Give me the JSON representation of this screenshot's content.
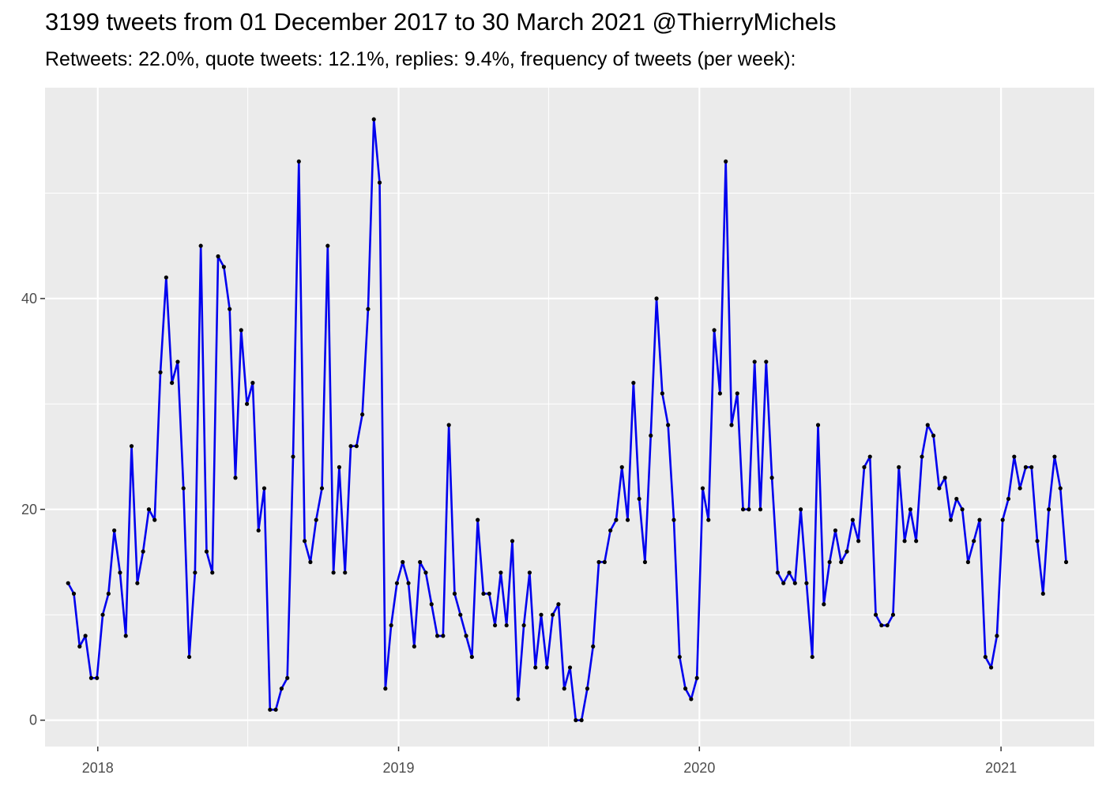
{
  "title": "3199 tweets from 01 December 2017 to 30 March 2021 @ThierryMichels",
  "subtitle": "Retweets: 22.0%, quote tweets: 12.1%, replies: 9.4%, frequency of tweets (per week):",
  "colors": {
    "panel": "#ebebeb",
    "grid": "#ffffff",
    "line": "#0000ee",
    "point": "#000000"
  },
  "chart_data": {
    "type": "line",
    "xlabel": "",
    "ylabel": "",
    "x_tick_labels": [
      "2018",
      "2019",
      "2020",
      "2021"
    ],
    "y_tick_labels": [
      "0",
      "20",
      "40"
    ],
    "ylim": [
      -2.5,
      60
    ],
    "xlim": [
      "2017-10-29",
      "2021-04-24"
    ],
    "grid": true,
    "x_start": "2017-11-26",
    "x_step_days": 7,
    "values": [
      13,
      12,
      7,
      8,
      4,
      4,
      10,
      12,
      18,
      14,
      8,
      26,
      13,
      16,
      20,
      19,
      33,
      42,
      32,
      34,
      22,
      6,
      14,
      45,
      16,
      14,
      44,
      43,
      39,
      23,
      37,
      30,
      32,
      18,
      22,
      1,
      1,
      3,
      4,
      25,
      53,
      17,
      15,
      19,
      22,
      45,
      14,
      24,
      14,
      26,
      26,
      29,
      39,
      57,
      51,
      3,
      9,
      13,
      15,
      13,
      7,
      15,
      14,
      11,
      8,
      8,
      28,
      12,
      10,
      8,
      6,
      19,
      12,
      12,
      9,
      14,
      9,
      17,
      2,
      9,
      14,
      5,
      10,
      5,
      10,
      11,
      3,
      5,
      0,
      0,
      3,
      7,
      15,
      15,
      18,
      19,
      24,
      19,
      32,
      21,
      15,
      27,
      40,
      31,
      28,
      19,
      6,
      3,
      2,
      4,
      22,
      19,
      37,
      31,
      53,
      28,
      31,
      20,
      20,
      34,
      20,
      34,
      23,
      14,
      13,
      14,
      13,
      20,
      13,
      6,
      28,
      11,
      15,
      18,
      15,
      16,
      19,
      17,
      24,
      25,
      10,
      9,
      9,
      10,
      24,
      17,
      20,
      17,
      25,
      28,
      27,
      22,
      23,
      19,
      21,
      20,
      15,
      17,
      19,
      6,
      5,
      8,
      19,
      21,
      25,
      22,
      24,
      24,
      17,
      12,
      20,
      25,
      22,
      15
    ]
  }
}
